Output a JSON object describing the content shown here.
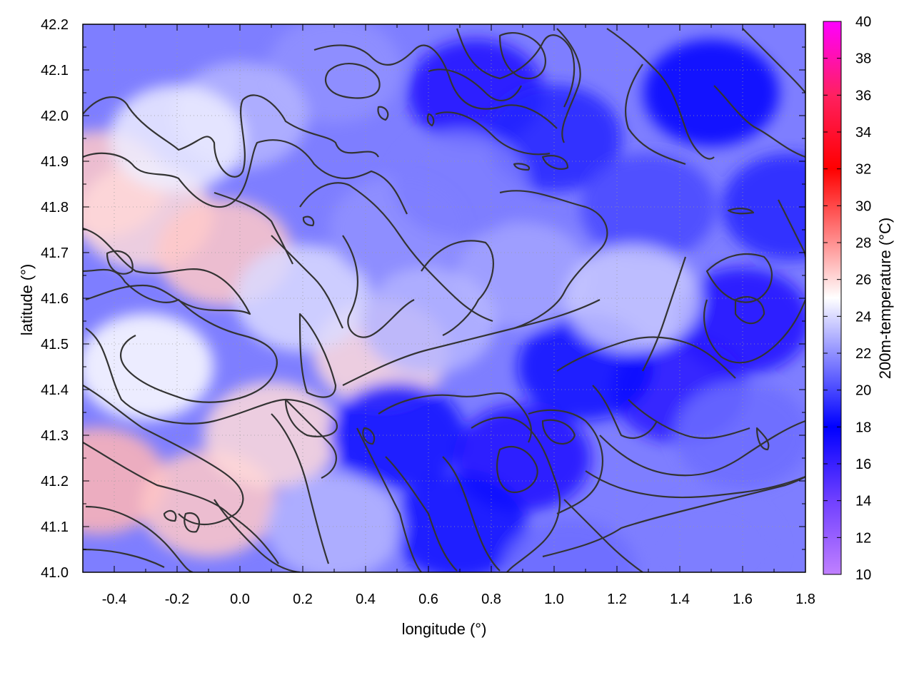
{
  "chart_data": {
    "type": "heatmap",
    "xlabel": "longitude (°)",
    "ylabel": "latitude (°)",
    "colorbar_label": "200m-temperature (°C)",
    "xlim": [
      -0.5,
      1.8
    ],
    "ylim": [
      41.0,
      42.2
    ],
    "x_ticks": [
      -0.4,
      -0.2,
      0.0,
      0.2,
      0.4,
      0.6,
      0.8,
      1.0,
      1.2,
      1.4,
      1.6,
      1.8
    ],
    "x_tick_labels": [
      "-0.4",
      "-0.2",
      "0.0",
      "0.2",
      "0.4",
      "0.6",
      "0.8",
      "1.0",
      "1.2",
      "1.4",
      "1.6",
      "1.8"
    ],
    "y_ticks": [
      41.0,
      41.1,
      41.2,
      41.3,
      41.4,
      41.5,
      41.6,
      41.7,
      41.8,
      41.9,
      42.0,
      42.1,
      42.2
    ],
    "y_tick_labels": [
      "41.0",
      "41.1",
      "41.2",
      "41.3",
      "41.4",
      "41.5",
      "41.6",
      "41.7",
      "41.8",
      "41.9",
      "42.0",
      "42.1",
      "42.2"
    ],
    "colorbar_range": [
      10,
      40
    ],
    "colorbar_ticks": [
      10,
      12,
      14,
      16,
      18,
      20,
      22,
      24,
      26,
      28,
      30,
      32,
      34,
      36,
      38,
      40
    ],
    "colorbar_tick_labels": [
      "10",
      "12",
      "14",
      "16",
      "18",
      "20",
      "22",
      "24",
      "26",
      "28",
      "30",
      "32",
      "34",
      "36",
      "38",
      "40"
    ],
    "colorbar_stops": [
      {
        "value": 10,
        "color": "#c080ff"
      },
      {
        "value": 14,
        "color": "#7040ff"
      },
      {
        "value": 18,
        "color": "#0000ff"
      },
      {
        "value": 22,
        "color": "#9090ff"
      },
      {
        "value": 25,
        "color": "#ffffff"
      },
      {
        "value": 28,
        "color": "#ff9090"
      },
      {
        "value": 32,
        "color": "#ff0000"
      },
      {
        "value": 36,
        "color": "#ff2060"
      },
      {
        "value": 40,
        "color": "#ff00ff"
      }
    ],
    "grid": true,
    "contours": true,
    "temperature_samples": [
      {
        "lon": -0.45,
        "lat": 41.85,
        "t": 26.5
      },
      {
        "lon": -0.3,
        "lat": 41.78,
        "t": 26.0
      },
      {
        "lon": -0.05,
        "lat": 41.7,
        "t": 26.5
      },
      {
        "lon": -0.45,
        "lat": 41.2,
        "t": 27.0
      },
      {
        "lon": -0.1,
        "lat": 41.15,
        "t": 26.5
      },
      {
        "lon": 0.1,
        "lat": 41.3,
        "t": 26.0
      },
      {
        "lon": -0.3,
        "lat": 41.45,
        "t": 25.0
      },
      {
        "lon": 0.45,
        "lat": 41.48,
        "t": 26.0
      },
      {
        "lon": 0.2,
        "lat": 41.6,
        "t": 24.0
      },
      {
        "lon": 0.5,
        "lat": 41.75,
        "t": 22.0
      },
      {
        "lon": 0.3,
        "lat": 42.1,
        "t": 22.0
      },
      {
        "lon": 0.0,
        "lat": 42.0,
        "t": 23.0
      },
      {
        "lon": 0.75,
        "lat": 42.05,
        "t": 17.0
      },
      {
        "lon": 1.0,
        "lat": 41.95,
        "t": 19.0
      },
      {
        "lon": 1.5,
        "lat": 42.05,
        "t": 18.0
      },
      {
        "lon": 1.3,
        "lat": 41.8,
        "t": 20.0
      },
      {
        "lon": 1.6,
        "lat": 41.55,
        "t": 17.0
      },
      {
        "lon": 1.4,
        "lat": 41.4,
        "t": 16.5
      },
      {
        "lon": 1.1,
        "lat": 41.45,
        "t": 17.5
      },
      {
        "lon": 0.9,
        "lat": 41.25,
        "t": 17.0
      },
      {
        "lon": 0.5,
        "lat": 41.3,
        "t": 18.5
      },
      {
        "lon": 0.7,
        "lat": 41.1,
        "t": 17.5
      },
      {
        "lon": 1.05,
        "lat": 41.0,
        "t": 21.0
      },
      {
        "lon": 1.5,
        "lat": 41.05,
        "t": 21.5
      },
      {
        "lon": 1.6,
        "lat": 41.3,
        "t": 21.0
      },
      {
        "lon": 0.9,
        "lat": 41.65,
        "t": 22.5
      },
      {
        "lon": 1.25,
        "lat": 41.6,
        "t": 23.5
      },
      {
        "lon": 0.3,
        "lat": 41.1,
        "t": 23.0
      },
      {
        "lon": 0.6,
        "lat": 41.55,
        "t": 23.0
      },
      {
        "lon": -0.2,
        "lat": 41.95,
        "t": 24.5
      },
      {
        "lon": 0.7,
        "lat": 41.85,
        "t": 21.5
      },
      {
        "lon": 1.75,
        "lat": 41.8,
        "t": 19.0
      }
    ]
  }
}
